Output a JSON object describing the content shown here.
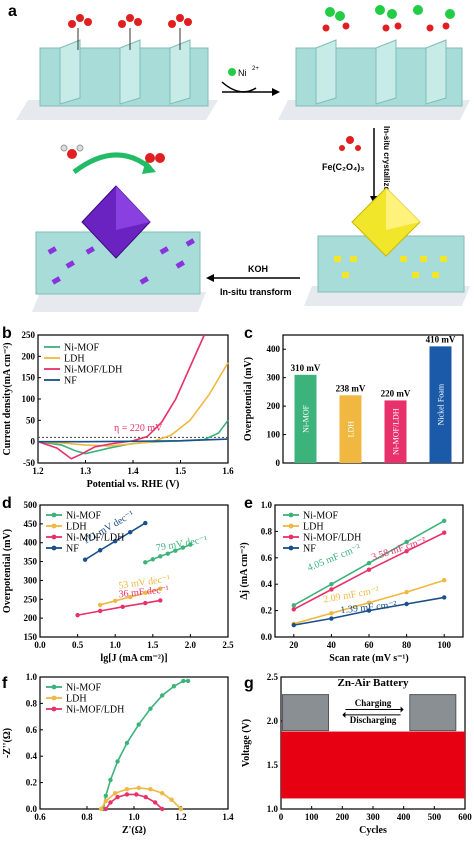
{
  "panel_labels": [
    "a",
    "b",
    "c",
    "d",
    "e",
    "f",
    "g"
  ],
  "schematic": {
    "ion_label": "Ni",
    "ion_charge": "2+",
    "step1_label": "In-situ crystallize",
    "reagent_label": "Fe(C₂O₄)₃",
    "step2_label_top": "KOH",
    "step2_label_bottom": "In-situ transform"
  },
  "colors": {
    "ni_mof": "#3cb37a",
    "ldh": "#f0b840",
    "ni_mof_ldh": "#e8306a",
    "nf": "#1a4f8a",
    "nickel_foam_bar": "#1a5aa8",
    "battery_red": "#e60012"
  },
  "chart_data": [
    {
      "type": "line",
      "panel": "b",
      "xlabel": "Potential vs. RHE (V)",
      "ylabel": "Current density(mA cm⁻²)",
      "xlim": [
        1.2,
        1.6
      ],
      "ylim": [
        -50,
        250
      ],
      "xticks": [
        "1.2",
        "1.3",
        "1.4",
        "1.5",
        "1.6"
      ],
      "yticks": [
        "-50",
        "0",
        "50",
        "100",
        "150",
        "200",
        "250"
      ],
      "annotation": "η = 220 mV",
      "legend_position": "top-left",
      "series": [
        {
          "name": "Ni-MOF",
          "x": [
            1.2,
            1.25,
            1.28,
            1.3,
            1.35,
            1.4,
            1.45,
            1.5,
            1.55,
            1.58,
            1.6
          ],
          "y": [
            0,
            -8,
            -22,
            -28,
            -15,
            -4,
            0,
            2,
            5,
            20,
            50
          ]
        },
        {
          "name": "LDH",
          "x": [
            1.2,
            1.25,
            1.3,
            1.35,
            1.4,
            1.44,
            1.48,
            1.52,
            1.56,
            1.6
          ],
          "y": [
            0,
            -3,
            -8,
            -10,
            -5,
            0,
            15,
            50,
            110,
            185
          ]
        },
        {
          "name": "Ni-MOF/LDH",
          "x": [
            1.2,
            1.24,
            1.27,
            1.29,
            1.32,
            1.36,
            1.4,
            1.43,
            1.46,
            1.49,
            1.52,
            1.55
          ],
          "y": [
            0,
            -15,
            -40,
            -30,
            -12,
            -4,
            2,
            12,
            45,
            100,
            175,
            250
          ]
        },
        {
          "name": "NF",
          "x": [
            1.2,
            1.3,
            1.4,
            1.5,
            1.55,
            1.6
          ],
          "y": [
            0,
            0,
            1,
            2,
            4,
            6
          ]
        }
      ]
    },
    {
      "type": "bar",
      "panel": "c",
      "ylabel": "Overpotential (mV)",
      "ylim": [
        0,
        450
      ],
      "yticks": [
        "0",
        "100",
        "200",
        "300",
        "400"
      ],
      "categories": [
        "Ni-MOF",
        "LDH",
        "Ni-MOF/LDH",
        "Nickel Foam"
      ],
      "values": [
        310,
        238,
        220,
        410
      ],
      "value_labels": [
        "310 mV",
        "238 mV",
        "220 mV",
        "410 mV"
      ]
    },
    {
      "type": "scatter",
      "panel": "d",
      "xlabel": "lg[J (mA cm⁻²)]",
      "ylabel": "Overpotential (mV)",
      "xlim": [
        0.0,
        2.5
      ],
      "ylim": [
        150,
        500
      ],
      "xticks": [
        "0.0",
        "0.5",
        "1.0",
        "1.5",
        "2.0",
        "2.5"
      ],
      "yticks": [
        "150",
        "200",
        "250",
        "300",
        "350",
        "400",
        "450",
        "500"
      ],
      "legend_position": "top-left",
      "series": [
        {
          "name": "Ni-MOF",
          "x": [
            1.4,
            1.5,
            1.6,
            1.7,
            1.8,
            1.9,
            2.0
          ],
          "y": [
            348,
            356,
            364,
            371,
            379,
            387,
            395
          ],
          "label": "79 mV dec⁻¹"
        },
        {
          "name": "LDH",
          "x": [
            0.8,
            1.0,
            1.2,
            1.4,
            1.6
          ],
          "y": [
            235,
            246,
            256,
            267,
            278
          ],
          "label": "53 mV dec⁻¹"
        },
        {
          "name": "Ni-MOF/LDH",
          "x": [
            0.5,
            0.8,
            1.1,
            1.4,
            1.6
          ],
          "y": [
            208,
            219,
            230,
            240,
            247
          ],
          "label": "36 mF dec⁻¹"
        },
        {
          "name": "NF",
          "x": [
            0.6,
            0.8,
            1.0,
            1.2,
            1.4
          ],
          "y": [
            355,
            380,
            404,
            428,
            452
          ],
          "label": "121 mV dec⁻¹"
        }
      ]
    },
    {
      "type": "scatter",
      "panel": "e",
      "xlabel": "Scan rate (mV s⁻¹)",
      "ylabel": "Δj (mA cm⁻²)",
      "xlim": [
        10,
        110
      ],
      "ylim": [
        0.0,
        1.0
      ],
      "xticks": [
        "20",
        "40",
        "60",
        "80",
        "100"
      ],
      "yticks": [
        "0.0",
        "0.2",
        "0.4",
        "0.6",
        "0.8",
        "1.0"
      ],
      "legend_position": "top-left",
      "series": [
        {
          "name": "Ni-MOF",
          "x": [
            20,
            40,
            60,
            80,
            100
          ],
          "y": [
            0.24,
            0.4,
            0.56,
            0.72,
            0.88
          ],
          "label": "4.05 mF cm⁻²"
        },
        {
          "name": "LDH",
          "x": [
            20,
            40,
            60,
            80,
            100
          ],
          "y": [
            0.1,
            0.18,
            0.26,
            0.34,
            0.43
          ],
          "label": "2.09 mF cm⁻²"
        },
        {
          "name": "Ni-MOF/LDH",
          "x": [
            20,
            40,
            60,
            80,
            100
          ],
          "y": [
            0.21,
            0.36,
            0.51,
            0.65,
            0.79
          ],
          "label": "3.58 mF cm⁻²"
        },
        {
          "name": "NF",
          "x": [
            20,
            40,
            60,
            80,
            100
          ],
          "y": [
            0.09,
            0.14,
            0.2,
            0.25,
            0.3
          ],
          "label": "1.39 mF cm⁻²"
        }
      ]
    },
    {
      "type": "line",
      "panel": "f",
      "xlabel": "Z'(Ω)",
      "ylabel": "-Z''(Ω)",
      "xlim": [
        0.6,
        1.4
      ],
      "ylim": [
        0.0,
        1.0
      ],
      "xticks": [
        "0.6",
        "0.8",
        "1.0",
        "1.2",
        "1.4"
      ],
      "yticks": [
        "0.0",
        "0.2",
        "0.4",
        "0.6",
        "0.8",
        "1.0"
      ],
      "legend_position": "top-left",
      "series": [
        {
          "name": "Ni-MOF",
          "x": [
            0.87,
            0.88,
            0.9,
            0.93,
            0.97,
            1.02,
            1.07,
            1.12,
            1.17,
            1.21,
            1.23
          ],
          "y": [
            0.0,
            0.1,
            0.22,
            0.36,
            0.5,
            0.64,
            0.76,
            0.86,
            0.93,
            0.97,
            0.97
          ]
        },
        {
          "name": "LDH",
          "x": [
            0.86,
            0.88,
            0.92,
            0.97,
            1.02,
            1.07,
            1.12,
            1.16,
            1.2
          ],
          "y": [
            0.0,
            0.06,
            0.12,
            0.15,
            0.16,
            0.15,
            0.12,
            0.07,
            0.0
          ]
        },
        {
          "name": "Ni-MOF/LDH",
          "x": [
            0.88,
            0.9,
            0.93,
            0.97,
            1.01,
            1.05,
            1.09,
            1.12
          ],
          "y": [
            0.0,
            0.05,
            0.09,
            0.11,
            0.11,
            0.09,
            0.05,
            0.0
          ]
        }
      ]
    },
    {
      "type": "area",
      "panel": "g",
      "title": "Zn-Air Battery",
      "xlabel": "Cycles",
      "ylabel": "Voltage (V)",
      "xlim": [
        0,
        600
      ],
      "ylim": [
        1.0,
        2.5
      ],
      "xticks": [
        "0",
        "100",
        "200",
        "300",
        "400",
        "500",
        "600"
      ],
      "yticks": [
        "1.0",
        "1.5",
        "2.0",
        "2.5"
      ],
      "band": {
        "low": 1.12,
        "high": 1.88,
        "x_end": 600
      },
      "inset_labels": [
        "Charging",
        "Discharging"
      ]
    }
  ]
}
